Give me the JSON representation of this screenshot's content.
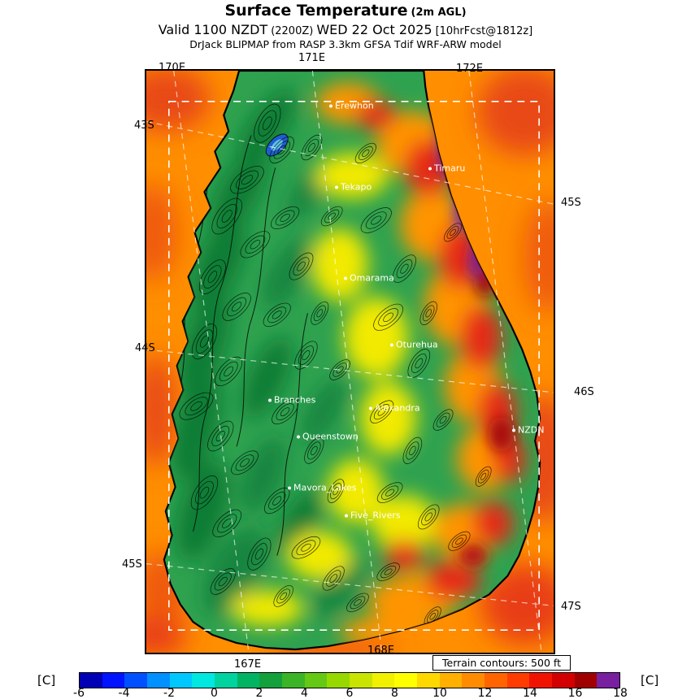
{
  "header": {
    "title": "Surface Temperature",
    "title_note": "(2m AGL)",
    "valid_prefix": "Valid 1100 NZDT",
    "valid_zulu": "(2200Z)",
    "valid_date": "WED 22 Oct 2025",
    "valid_fcst": "[10hrFcst@1812z]",
    "model_line": "DrJack BLIPMAP from RASP 3.3km GFSA Tdif WRF-ARW model"
  },
  "map": {
    "grid_labels": {
      "top": [
        "170E",
        "171E",
        "172E"
      ],
      "left": [
        "43S",
        "44S",
        "45S"
      ],
      "right": [
        "45S",
        "46S",
        "47S"
      ],
      "bottom": [
        "167E",
        "168E"
      ]
    },
    "cities": [
      {
        "name": "Erewhon"
      },
      {
        "name": "Timaru"
      },
      {
        "name": "Tekapo"
      },
      {
        "name": "Omarama"
      },
      {
        "name": "Oturehua"
      },
      {
        "name": "Branches"
      },
      {
        "name": "Alexandra"
      },
      {
        "name": "Queenstown"
      },
      {
        "name": "NZDN"
      },
      {
        "name": "Mavora_Lakes"
      },
      {
        "name": "Five_Rivers"
      }
    ],
    "terrain_note": "Terrain contours: 500 ft"
  },
  "colorbar": {
    "unit_left": "[C]",
    "unit_right": "[C]",
    "min": -6,
    "max": 18,
    "ticks": [
      -6,
      -4,
      -2,
      0,
      2,
      4,
      6,
      8,
      10,
      12,
      14,
      16,
      18
    ],
    "colors": [
      "#0000b4",
      "#0014ff",
      "#0050ff",
      "#0090ff",
      "#00c8ff",
      "#00e8e0",
      "#00d2a0",
      "#00b464",
      "#14a03c",
      "#3cb428",
      "#64c814",
      "#96d800",
      "#c8e400",
      "#f0f000",
      "#ffff00",
      "#ffd800",
      "#ffb000",
      "#ff8c00",
      "#ff6400",
      "#ff3c00",
      "#f01400",
      "#d20000",
      "#a00000",
      "#7820a0"
    ]
  }
}
